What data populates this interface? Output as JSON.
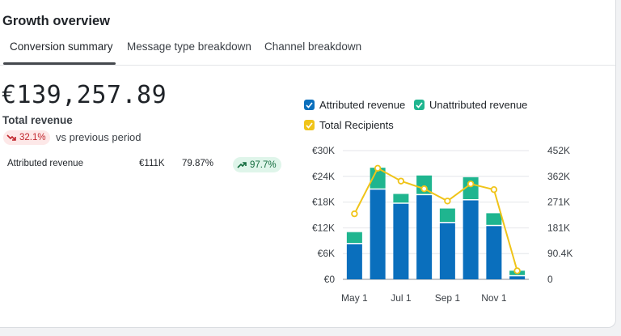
{
  "header": {
    "title": "Growth overview"
  },
  "tabs": [
    {
      "label": "Conversion summary",
      "active": true
    },
    {
      "label": "Message type breakdown",
      "active": false
    },
    {
      "label": "Channel breakdown",
      "active": false
    }
  ],
  "summary": {
    "total_value": "€139,257.89",
    "total_label": "Total revenue",
    "change": "32.1%",
    "change_icon": "trend-down-icon",
    "vs_text": "vs previous period",
    "breakdown": {
      "label": "Attributed revenue",
      "amount": "€111K",
      "percent": "79.87%",
      "change": "97.7%",
      "change_icon": "trend-up-icon"
    }
  },
  "colors": {
    "attributed": "#0a6fbd",
    "unattributed": "#1fb58f",
    "recipients": "#f0c419",
    "negative": "#c0262d",
    "positive": "#136c3e"
  },
  "chart_data": {
    "type": "bar",
    "legend": [
      "Attributed revenue",
      "Unattributed revenue",
      "Total Recipients"
    ],
    "legend_placement": "top",
    "x_tick_labels": [
      "May 1",
      "Jul 1",
      "Sep 1",
      "Nov 1"
    ],
    "y_left_ticks": [
      "€0",
      "€6K",
      "€12K",
      "€18K",
      "€24K",
      "€30K"
    ],
    "y_right_ticks": [
      "0",
      "90.4K",
      "181K",
      "271K",
      "362K",
      "452K"
    ],
    "ylim_left": [
      0,
      30000
    ],
    "ylim_right": [
      0,
      452000
    ],
    "grid": true,
    "series": [
      {
        "name": "Attributed revenue",
        "type": "bar",
        "stack": "revenue",
        "values": [
          8200,
          20900,
          17600,
          19600,
          13100,
          18400,
          12400,
          700
        ]
      },
      {
        "name": "Unattributed revenue",
        "type": "bar",
        "stack": "revenue",
        "values": [
          2800,
          5100,
          2300,
          4600,
          3400,
          5400,
          3000,
          1300
        ]
      },
      {
        "name": "Total Recipients",
        "type": "line",
        "axis": "right",
        "values": [
          230000,
          390000,
          345000,
          318000,
          275000,
          335000,
          315000,
          30000
        ]
      }
    ]
  }
}
